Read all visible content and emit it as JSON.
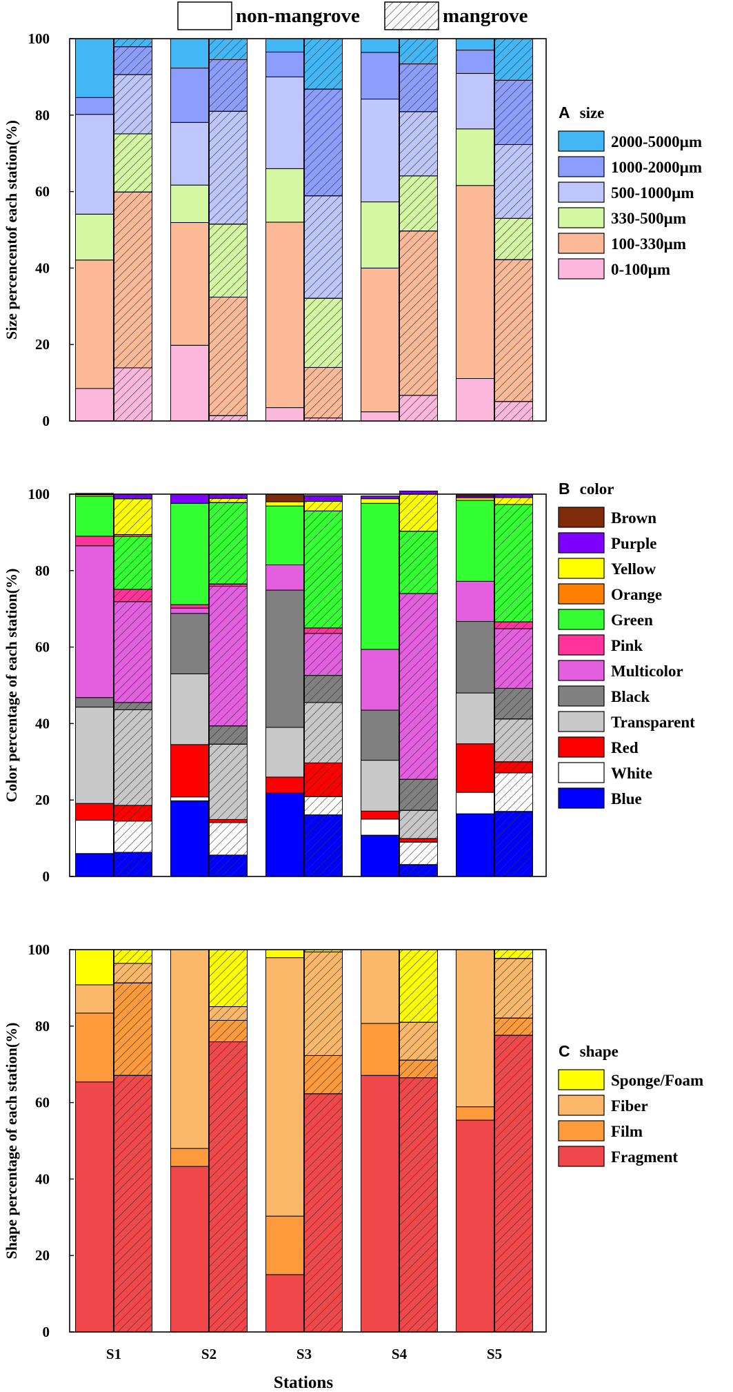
{
  "legend_top": {
    "non_mangrove": "non-mangrove",
    "mangrove": "mangrove"
  },
  "stations": [
    "S1",
    "S2",
    "S3",
    "S4",
    "S5"
  ],
  "xlabel": "Stations",
  "chart_data": [
    {
      "type": "bar",
      "stacked": true,
      "panel_letter": "A",
      "panel_title": "size",
      "ylabel": "Size percencentof each station(%)",
      "ylim": [
        0,
        100
      ],
      "yticks": [
        "0",
        "20",
        "40",
        "60",
        "80",
        "100"
      ],
      "categories": [
        "S1",
        "S2",
        "S3",
        "S4",
        "S5"
      ],
      "series": [
        {
          "name": "0-100µm",
          "color": "#fcb7dd",
          "non_mangrove": [
            8.5,
            19.8,
            3.5,
            2.4,
            11.1
          ],
          "mangrove": [
            13.9,
            1.4,
            0.8,
            6.7,
            5.1
          ]
        },
        {
          "name": "100-330µm",
          "color": "#fbb997",
          "non_mangrove": [
            33.6,
            32.1,
            48.5,
            37.6,
            50.5
          ],
          "mangrove": [
            46.0,
            31.0,
            13.2,
            43.0,
            37.1
          ]
        },
        {
          "name": "330-500µm",
          "color": "#d3f7a2",
          "non_mangrove": [
            12.0,
            9.8,
            14.0,
            17.3,
            14.8
          ],
          "mangrove": [
            15.2,
            19.1,
            18.1,
            14.4,
            10.8
          ]
        },
        {
          "name": "500-1000µm",
          "color": "#bfc6fb",
          "non_mangrove": [
            26.1,
            16.4,
            24.0,
            26.9,
            14.5
          ],
          "mangrove": [
            15.5,
            29.5,
            26.8,
            16.8,
            19.3
          ]
        },
        {
          "name": "1000-2000µm",
          "color": "#8d9dfb",
          "non_mangrove": [
            4.4,
            14.2,
            6.5,
            12.2,
            6.1
          ],
          "mangrove": [
            7.3,
            13.5,
            27.9,
            12.5,
            16.8
          ]
        },
        {
          "name": "2000-5000µm",
          "color": "#43b7f5",
          "non_mangrove": [
            15.4,
            7.7,
            3.5,
            3.6,
            3.0
          ],
          "mangrove": [
            2.1,
            5.5,
            13.2,
            6.6,
            10.9
          ]
        }
      ]
    },
    {
      "type": "bar",
      "stacked": true,
      "panel_letter": "B",
      "panel_title": "color",
      "ylabel": "Color percentage of each station(%)",
      "ylim": [
        0,
        100
      ],
      "yticks": [
        "0",
        "20",
        "40",
        "60",
        "80",
        "100"
      ],
      "categories": [
        "S1",
        "S2",
        "S3",
        "S4",
        "S5"
      ],
      "series": [
        {
          "name": "Blue",
          "color": "#0000fe",
          "non_mangrove": [
            6.0,
            19.8,
            21.8,
            10.8,
            16.4
          ],
          "mangrove": [
            6.3,
            5.6,
            16.1,
            3.1,
            17.0
          ]
        },
        {
          "name": "White",
          "color": "#ffffff",
          "non_mangrove": [
            8.7,
            1.0,
            0.0,
            4.2,
            5.6
          ],
          "mangrove": [
            8.2,
            8.5,
            4.8,
            5.9,
            10.1
          ]
        },
        {
          "name": "Red",
          "color": "#fe0000",
          "non_mangrove": [
            4.4,
            13.7,
            4.2,
            2.1,
            12.7
          ],
          "mangrove": [
            4.1,
            0.8,
            8.8,
            0.9,
            2.9
          ]
        },
        {
          "name": "Transparent",
          "color": "#c8c8c8",
          "non_mangrove": [
            25.2,
            18.5,
            13.0,
            13.3,
            13.3
          ],
          "mangrove": [
            25.0,
            19.7,
            15.8,
            7.4,
            11.2
          ]
        },
        {
          "name": "Black",
          "color": "#808080",
          "non_mangrove": [
            2.5,
            15.8,
            35.9,
            13.1,
            18.7
          ],
          "mangrove": [
            1.9,
            4.8,
            7.1,
            8.1,
            8.0
          ]
        },
        {
          "name": "Multicolor",
          "color": "#e45ee0",
          "non_mangrove": [
            39.7,
            1.4,
            6.6,
            15.9,
            10.5
          ],
          "mangrove": [
            26.4,
            36.5,
            11.0,
            48.6,
            15.6
          ]
        },
        {
          "name": "Pink",
          "color": "#ff3399",
          "non_mangrove": [
            2.5,
            0.9,
            0.0,
            0.0,
            0.0
          ],
          "mangrove": [
            3.2,
            0.6,
            1.4,
            0.0,
            1.8
          ]
        },
        {
          "name": "Green",
          "color": "#33ff33",
          "non_mangrove": [
            10.4,
            26.5,
            15.4,
            38.2,
            21.2
          ],
          "mangrove": [
            13.8,
            21.3,
            30.6,
            16.3,
            30.7
          ]
        },
        {
          "name": "Orange",
          "color": "#ff8000",
          "non_mangrove": [
            0.0,
            0.0,
            0.0,
            0.0,
            0.0
          ],
          "mangrove": [
            0.5,
            0.0,
            0.0,
            0.0,
            0.0
          ]
        },
        {
          "name": "Yellow",
          "color": "#ffff00",
          "non_mangrove": [
            0.4,
            0.0,
            1.1,
            1.2,
            0.6
          ],
          "mangrove": [
            9.4,
            1.1,
            2.5,
            9.8,
            1.8
          ]
        },
        {
          "name": "Purple",
          "color": "#8000ff",
          "non_mangrove": [
            0.4,
            2.4,
            0.0,
            0.7,
            0.5
          ],
          "mangrove": [
            1.2,
            1.1,
            1.5,
            0.7,
            0.9
          ]
        },
        {
          "name": "Brown",
          "color": "#7f2b0a",
          "non_mangrove": [
            0.0,
            0.0,
            2.0,
            0.0,
            0.5
          ],
          "mangrove": [
            0.0,
            0.0,
            0.0,
            0.0,
            0.0
          ]
        }
      ]
    },
    {
      "type": "bar",
      "stacked": true,
      "panel_letter": "C",
      "panel_title": "shape",
      "ylabel": "Shape percentage of each station(%)",
      "ylim": [
        0,
        100
      ],
      "yticks": [
        "0",
        "20",
        "40",
        "60",
        "80",
        "100"
      ],
      "categories": [
        "S1",
        "S2",
        "S3",
        "S4",
        "S5"
      ],
      "series": [
        {
          "name": "Fragment",
          "color": "#f0484a",
          "non_mangrove": [
            65.4,
            43.3,
            15.0,
            67.1,
            55.4
          ],
          "mangrove": [
            67.1,
            75.9,
            62.3,
            66.5,
            77.6
          ]
        },
        {
          "name": "Film",
          "color": "#fc9a3c",
          "non_mangrove": [
            18.0,
            4.7,
            15.3,
            13.6,
            3.5
          ],
          "mangrove": [
            24.2,
            5.6,
            10.0,
            4.6,
            4.5
          ]
        },
        {
          "name": "Fiber",
          "color": "#fcb86a",
          "non_mangrove": [
            7.4,
            52.0,
            67.6,
            19.3,
            41.1
          ],
          "mangrove": [
            5.1,
            3.6,
            27.1,
            9.9,
            15.6
          ]
        },
        {
          "name": "Sponge/Foam",
          "color": "#ffff00",
          "non_mangrove": [
            9.2,
            0.0,
            2.1,
            0.0,
            0.0
          ],
          "mangrove": [
            3.6,
            14.9,
            0.6,
            19.0,
            2.3
          ]
        }
      ]
    }
  ]
}
